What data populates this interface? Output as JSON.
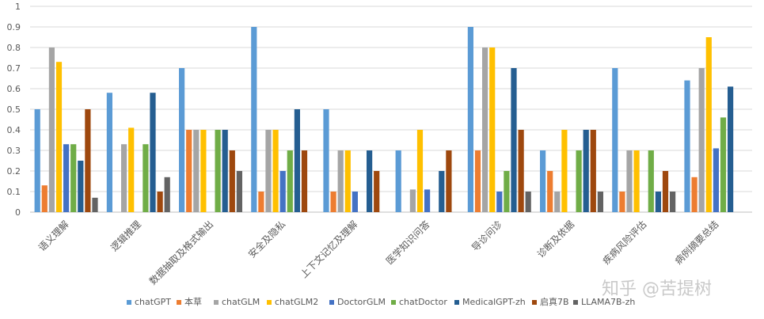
{
  "chart_data": {
    "type": "bar",
    "title": "",
    "xlabel": "",
    "ylabel": "",
    "ylim": [
      0,
      1
    ],
    "yticks": [
      "0",
      "0.1",
      "0.2",
      "0.3",
      "0.4",
      "0.5",
      "0.6",
      "0.7",
      "0.8",
      "0.9",
      "1"
    ],
    "grid": true,
    "legend_position": "bottom",
    "categories": [
      "语义理解",
      "逻辑推理",
      "数据抽取及格式输出",
      "安全及隐私",
      "上下文记忆及理解",
      "医学知识问答",
      "导诊问诊",
      "诊断及依据",
      "疾病风险评估",
      "病例摘要总结"
    ],
    "series": [
      {
        "name": "chatGPT",
        "color": "#5B9BD5",
        "values": [
          0.5,
          0.58,
          0.7,
          0.9,
          0.5,
          0.3,
          0.9,
          0.3,
          0.7,
          0.64
        ]
      },
      {
        "name": "本草",
        "color": "#ED7D31",
        "values": [
          0.13,
          0,
          0.4,
          0.1,
          0.1,
          0,
          0.3,
          0.2,
          0.1,
          0.17
        ]
      },
      {
        "name": "chatGLM",
        "color": "#A5A5A5",
        "values": [
          0.8,
          0.33,
          0.4,
          0.4,
          0.3,
          0.11,
          0.8,
          0.1,
          0.3,
          0.7
        ]
      },
      {
        "name": "chatGLM2",
        "color": "#FFC000",
        "values": [
          0.73,
          0.41,
          0.4,
          0.4,
          0.3,
          0.4,
          0.8,
          0.4,
          0.3,
          0.85
        ]
      },
      {
        "name": "DoctorGLM",
        "color": "#4472C4",
        "values": [
          0.33,
          0,
          0,
          0.2,
          0.1,
          0.11,
          0.1,
          0,
          0,
          0.31
        ]
      },
      {
        "name": "chatDoctor",
        "color": "#70AD47",
        "values": [
          0.33,
          0.33,
          0.4,
          0.3,
          0,
          0,
          0.2,
          0.3,
          0.3,
          0.46
        ]
      },
      {
        "name": "MedicalGPT-zh",
        "color": "#255E91",
        "values": [
          0.25,
          0.58,
          0.4,
          0.5,
          0.3,
          0.2,
          0.7,
          0.4,
          0.1,
          0.61
        ]
      },
      {
        "name": "启真7B",
        "color": "#9E480E",
        "values": [
          0.5,
          0.1,
          0.3,
          0.3,
          0.2,
          0.3,
          0.4,
          0.4,
          0.2,
          0
        ]
      },
      {
        "name": "LLAMA7B-zh",
        "color": "#636363",
        "values": [
          0.07,
          0.17,
          0.2,
          0,
          0,
          0,
          0.1,
          0.1,
          0.1,
          0
        ]
      }
    ]
  },
  "watermark": {
    "text": "知乎 @苦提树"
  }
}
